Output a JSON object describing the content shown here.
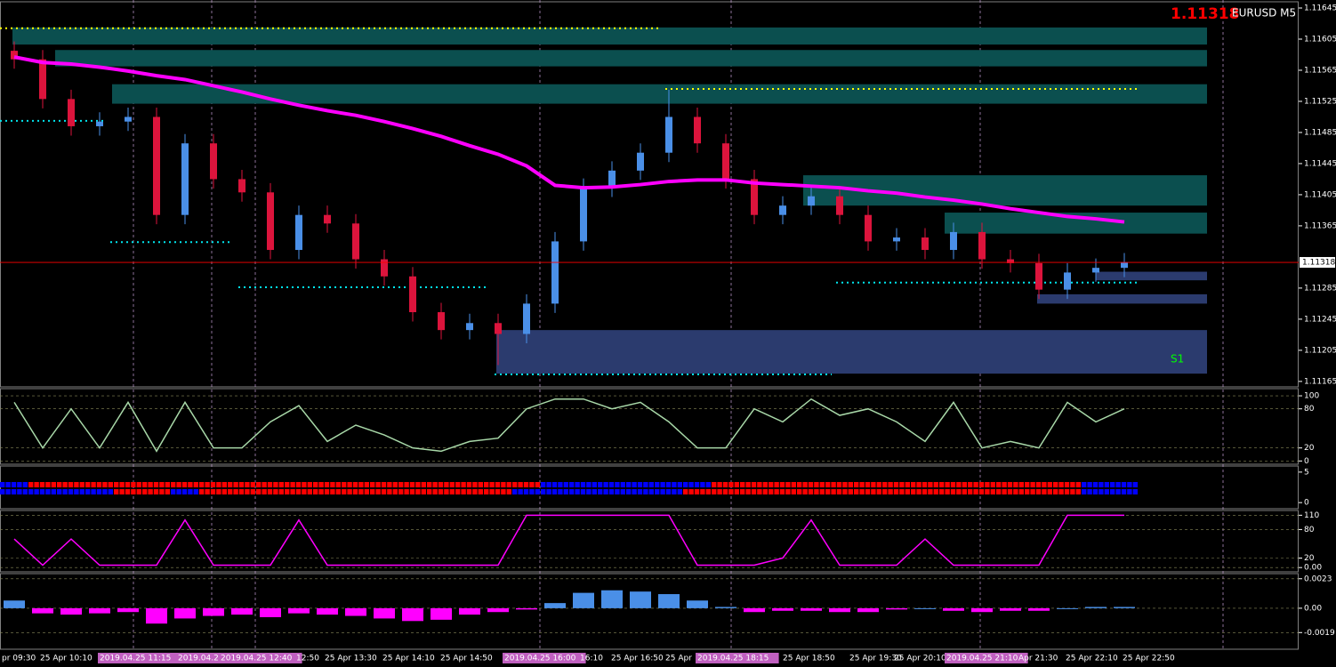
{
  "chart_data": [
    {
      "type": "candlestick",
      "symbol": "EURUSD M5",
      "price": 1.11318,
      "zone_label": "S1",
      "up_color": "#4a8fe7",
      "down_color": "#dc143c",
      "price_color": "#ff0000",
      "open": [
        1.1159,
        1.11579,
        1.11528,
        1.11493,
        1.11499,
        1.11505,
        1.11379,
        1.11471,
        1.11425,
        1.11408,
        1.11334,
        1.11379,
        1.11368,
        1.11322,
        1.113,
        1.11254,
        1.11231,
        1.1124,
        1.11226,
        1.11265,
        1.11345,
        1.11414,
        1.11436,
        1.11459,
        1.11505,
        1.11471,
        1.11425,
        1.11379,
        1.11391,
        1.11403,
        1.11379,
        1.11345,
        1.1135,
        1.11334,
        1.11357,
        1.11322,
        1.11317,
        1.11283,
        1.11305,
        1.11311
      ],
      "high": [
        1.11602,
        1.11591,
        1.1154,
        1.11511,
        1.11517,
        1.11517,
        1.11483,
        1.11483,
        1.11437,
        1.1142,
        1.11391,
        1.11391,
        1.1138,
        1.11334,
        1.11312,
        1.11266,
        1.11252,
        1.11252,
        1.11277,
        1.11357,
        1.11426,
        1.11448,
        1.11471,
        1.1154,
        1.11517,
        1.11483,
        1.11437,
        1.11403,
        1.11415,
        1.11415,
        1.11391,
        1.11362,
        1.11362,
        1.11369,
        1.11369,
        1.11334,
        1.11329,
        1.11317,
        1.11323,
        1.1133
      ],
      "low": [
        1.11567,
        1.11516,
        1.11481,
        1.11481,
        1.11487,
        1.11367,
        1.11367,
        1.11413,
        1.11396,
        1.11322,
        1.11322,
        1.11356,
        1.1131,
        1.11288,
        1.11242,
        1.11219,
        1.11219,
        1.11186,
        1.11214,
        1.11253,
        1.11333,
        1.11402,
        1.11424,
        1.11447,
        1.11459,
        1.11413,
        1.11367,
        1.11367,
        1.11379,
        1.11367,
        1.11333,
        1.11333,
        1.11322,
        1.11322,
        1.1131,
        1.11305,
        1.11271,
        1.11271,
        1.11293,
        1.11299
      ],
      "close": [
        1.11579,
        1.11528,
        1.11493,
        1.11499,
        1.11505,
        1.11379,
        1.11471,
        1.11425,
        1.11408,
        1.11334,
        1.11379,
        1.11368,
        1.11322,
        1.113,
        1.11254,
        1.11231,
        1.1124,
        1.11226,
        1.11265,
        1.11345,
        1.11414,
        1.11436,
        1.11459,
        1.11505,
        1.11471,
        1.11425,
        1.11379,
        1.11391,
        1.11403,
        1.11379,
        1.11345,
        1.1135,
        1.11334,
        1.11357,
        1.11322,
        1.11317,
        1.11283,
        1.11305,
        1.11311,
        1.11318
      ],
      "ma": {
        "color": "#ff00ff",
        "values": [
          1.11582,
          1.11575,
          1.11573,
          1.11569,
          1.11564,
          1.11558,
          1.11553,
          1.11545,
          1.11537,
          1.11528,
          1.1152,
          1.11513,
          1.11507,
          1.11499,
          1.1149,
          1.1148,
          1.11468,
          1.11457,
          1.11442,
          1.11417,
          1.11414,
          1.11415,
          1.11418,
          1.11422,
          1.11424,
          1.11424,
          1.1142,
          1.11418,
          1.11416,
          1.11414,
          1.1141,
          1.11407,
          1.11402,
          1.11398,
          1.11393,
          1.11387,
          1.11382,
          1.11377,
          1.11374,
          1.1137
        ]
      },
      "zones": [
        {
          "low": 1.11598,
          "high": 1.1162,
          "color": "#0b4f4f"
        },
        {
          "low": 1.1157,
          "high": 1.11591,
          "color": "#0b4f4f"
        },
        {
          "low": 1.11522,
          "high": 1.11547,
          "color": "#0b4f4f"
        },
        {
          "low": 1.11391,
          "high": 1.1143,
          "color": "#0b4f4f"
        },
        {
          "low": 1.11355,
          "high": 1.11382,
          "color": "#0b4f4f"
        },
        {
          "low": 1.11295,
          "high": 1.11306,
          "color": "#2b3b6e"
        },
        {
          "low": 1.11265,
          "high": 1.11277,
          "color": "#2b3b6e"
        },
        {
          "low": 1.11175,
          "high": 1.11231,
          "color": "#2b3b6e"
        }
      ],
      "levels": [
        {
          "value": 1.11619,
          "color": "#ffff00"
        },
        {
          "value": 1.11541,
          "color": "#ffff00"
        },
        {
          "value": 1.115,
          "color": "#00e5ee"
        },
        {
          "value": 1.11344,
          "color": "#00e5ee"
        },
        {
          "value": 1.11286,
          "color": "#00e5ee"
        },
        {
          "value": 1.11174,
          "color": "#00e5ee"
        },
        {
          "value": 1.11292,
          "color": "#00e5ee"
        }
      ],
      "ylim": [
        1.11158,
        1.11653
      ],
      "yticks": [
        1.11645,
        1.11605,
        1.11565,
        1.11525,
        1.11485,
        1.11445,
        1.11405,
        1.11365,
        1.11285,
        1.11245,
        1.11205,
        1.11165
      ]
    },
    {
      "type": "line",
      "color": "#a8d8a8",
      "grid": true,
      "ylim": [
        -5,
        111
      ],
      "yticks": [
        0,
        20,
        80,
        100
      ],
      "values": [
        90,
        20,
        80,
        20,
        90,
        15,
        90,
        20,
        20,
        60,
        85,
        30,
        55,
        40,
        20,
        15,
        30,
        35,
        80,
        95,
        95,
        80,
        90,
        60,
        20,
        20,
        80,
        60,
        95,
        70,
        80,
        60,
        30,
        90,
        20,
        30,
        20,
        90,
        60,
        80
      ]
    },
    {
      "type": "dots",
      "ylim": [
        -1,
        6
      ],
      "yticks": [
        0,
        5
      ],
      "rows": [
        {
          "colors": [
            "#0000ff",
            "#ff0000",
            "#ff0000",
            "#ff0000",
            "#ff0000",
            "#ff0000",
            "#ff0000",
            "#ff0000",
            "#ff0000",
            "#ff0000",
            "#ff0000",
            "#ff0000",
            "#ff0000",
            "#ff0000",
            "#ff0000",
            "#ff0000",
            "#ff0000",
            "#ff0000",
            "#ff0000",
            "#0000ff",
            "#0000ff",
            "#0000ff",
            "#0000ff",
            "#0000ff",
            "#0000ff",
            "#ff0000",
            "#ff0000",
            "#ff0000",
            "#ff0000",
            "#ff0000",
            "#ff0000",
            "#ff0000",
            "#ff0000",
            "#ff0000",
            "#ff0000",
            "#ff0000",
            "#ff0000",
            "#ff0000",
            "#0000ff",
            "#0000ff"
          ]
        },
        {
          "colors": [
            "#0000ff",
            "#0000ff",
            "#0000ff",
            "#0000ff",
            "#ff0000",
            "#ff0000",
            "#0000ff",
            "#ff0000",
            "#ff0000",
            "#ff0000",
            "#ff0000",
            "#ff0000",
            "#ff0000",
            "#ff0000",
            "#ff0000",
            "#ff0000",
            "#ff0000",
            "#ff0000",
            "#0000ff",
            "#0000ff",
            "#0000ff",
            "#0000ff",
            "#0000ff",
            "#0000ff",
            "#ff0000",
            "#ff0000",
            "#ff0000",
            "#ff0000",
            "#ff0000",
            "#ff0000",
            "#ff0000",
            "#ff0000",
            "#ff0000",
            "#ff0000",
            "#ff0000",
            "#ff0000",
            "#ff0000",
            "#ff0000",
            "#0000ff",
            "#0000ff"
          ]
        }
      ]
    },
    {
      "type": "line",
      "color": "#ff00ff",
      "grid": true,
      "ylim": [
        -9,
        120
      ],
      "yticks": [
        {
          "value": 0,
          "label": "0.00"
        },
        20,
        80,
        110
      ],
      "values": [
        60,
        5,
        60,
        5,
        5,
        5,
        100,
        5,
        5,
        5,
        100,
        5,
        5,
        5,
        5,
        5,
        5,
        5,
        110,
        110,
        110,
        110,
        110,
        110,
        5,
        5,
        5,
        20,
        100,
        5,
        5,
        5,
        60,
        5,
        5,
        5,
        5,
        110,
        110,
        110
      ]
    },
    {
      "type": "bar",
      "up_color": "#4a8fe7",
      "down_color": "#ff00ff",
      "grid": true,
      "ylim": [
        -0.0032,
        0.0027
      ],
      "yticks": [
        0.0023,
        {
          "value": 0,
          "label": "0.00"
        },
        -0.0019
      ],
      "values": [
        0.0006,
        -0.0004,
        -0.0005,
        -0.0004,
        -0.0003,
        -0.0012,
        -0.0008,
        -0.0006,
        -0.0005,
        -0.0007,
        -0.0004,
        -0.0005,
        -0.0006,
        -0.0008,
        -0.001,
        -0.0009,
        -0.0005,
        -0.0003,
        -0.0001,
        0.0004,
        0.0012,
        0.0014,
        0.0013,
        0.0011,
        0.0006,
        0.0001,
        -0.0003,
        -0.0002,
        -0.0002,
        -0.0003,
        -0.0003,
        -0.0001,
        0,
        -0.0002,
        -0.0003,
        -0.0002,
        -0.0002,
        0,
        0.0001,
        0.0001
      ]
    }
  ],
  "time_axis": [
    "pr 09:30",
    "25 Apr 10:10",
    "2019.04.25 11:15",
    "2019.04.2",
    "2019.04.25 12:40",
    "12:50",
    "25 Apr 13:30",
    "25 Apr 14:10",
    "25 Apr 14:50",
    "2019.04.25 16:00",
    "16:10",
    "25 Apr 16:50",
    "25 Apr",
    "2019.04.25 18:15",
    "25 Apr 18:50",
    "25 Apr 19:30",
    "25 Apr 20:10",
    "2019.04.25 21:10",
    "Apr 21:30",
    "25 Apr 22:10",
    "25 Apr 22:50"
  ]
}
